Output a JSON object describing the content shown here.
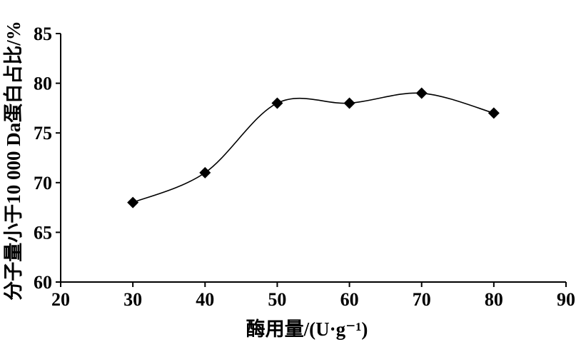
{
  "chart_data": {
    "type": "line",
    "title": "",
    "xlabel": "酶用量/(U·g⁻¹)",
    "ylabel": "分子量小于10 000 Da蛋白占比/%",
    "xlim": [
      20,
      90
    ],
    "ylim": [
      60,
      85
    ],
    "x_ticks": [
      "20",
      "30",
      "40",
      "50",
      "60",
      "70",
      "80",
      "90"
    ],
    "y_ticks": [
      "60",
      "65",
      "70",
      "75",
      "80",
      "85"
    ],
    "x": [
      30,
      40,
      50,
      60,
      70,
      80
    ],
    "series": [
      {
        "values": [
          68,
          71,
          78,
          78,
          79,
          77
        ]
      }
    ],
    "marker": "diamond",
    "line_style": "smooth",
    "grid": false,
    "legend": "none",
    "colors": {
      "line": "#000000",
      "marker": "#000000",
      "axis": "#000000"
    }
  }
}
